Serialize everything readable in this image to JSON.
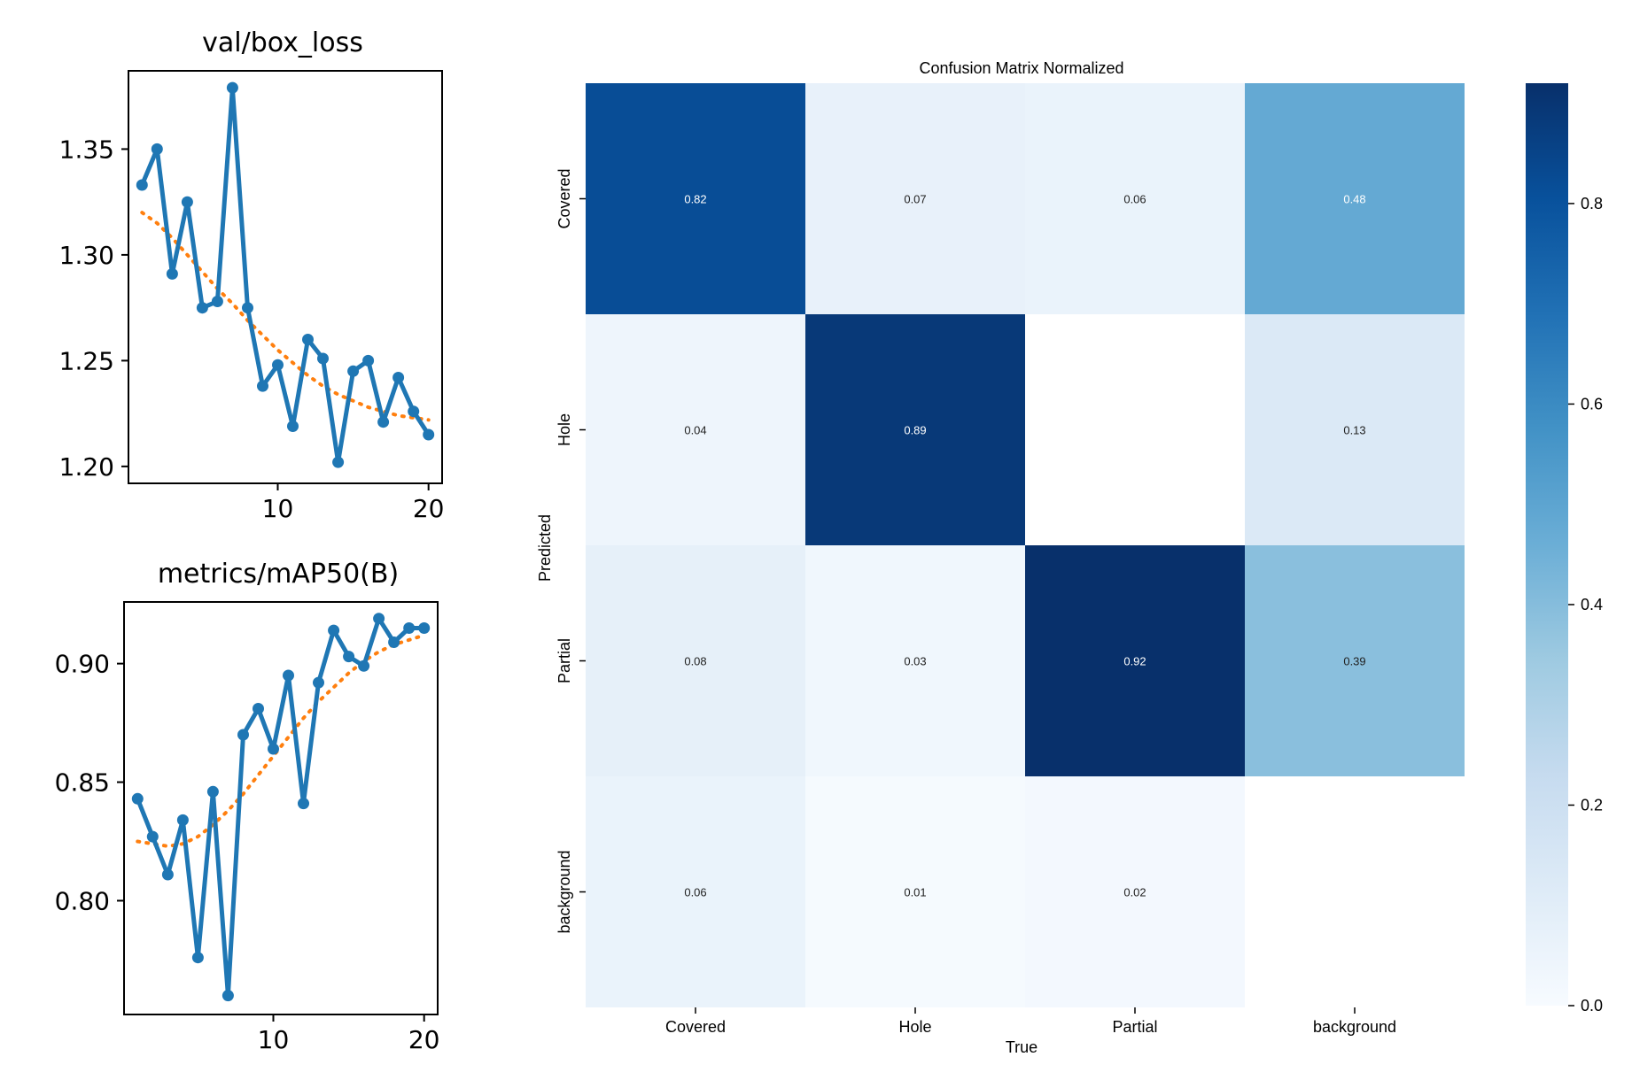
{
  "chart_data": [
    {
      "type": "line",
      "title": "val/box_loss",
      "x": [
        1,
        2,
        3,
        4,
        5,
        6,
        7,
        8,
        9,
        10,
        11,
        12,
        13,
        14,
        15,
        16,
        17,
        18,
        19,
        20
      ],
      "series": [
        {
          "values": [
            1.333,
            1.35,
            1.291,
            1.325,
            1.275,
            1.278,
            1.379,
            1.275,
            1.238,
            1.248,
            1.219,
            1.26,
            1.251,
            1.202,
            1.245,
            1.25,
            1.221,
            1.242,
            1.226,
            1.215
          ],
          "color": "#1f77b4",
          "style": "solid-markers"
        },
        {
          "values": [
            1.32,
            1.315,
            1.308,
            1.3,
            1.292,
            1.284,
            1.277,
            1.269,
            1.262,
            1.255,
            1.249,
            1.243,
            1.238,
            1.234,
            1.231,
            1.228,
            1.226,
            1.224,
            1.223,
            1.222
          ],
          "color": "#ff7f0e",
          "style": "dotted"
        }
      ],
      "xticks": [
        10,
        20
      ],
      "yticks": [
        "1.20",
        "1.25",
        "1.30",
        "1.35"
      ],
      "xlim": [
        0.1,
        20.9
      ],
      "ylim": [
        1.192,
        1.387
      ]
    },
    {
      "type": "line",
      "title": "metrics/mAP50(B)",
      "x": [
        1,
        2,
        3,
        4,
        5,
        6,
        7,
        8,
        9,
        10,
        11,
        12,
        13,
        14,
        15,
        16,
        17,
        18,
        19,
        20
      ],
      "series": [
        {
          "values": [
            0.843,
            0.827,
            0.811,
            0.834,
            0.776,
            0.846,
            0.76,
            0.87,
            0.881,
            0.864,
            0.895,
            0.841,
            0.892,
            0.914,
            0.903,
            0.899,
            0.919,
            0.909,
            0.915,
            0.915
          ],
          "color": "#1f77b4",
          "style": "solid-markers"
        },
        {
          "values": [
            0.825,
            0.824,
            0.823,
            0.824,
            0.827,
            0.832,
            0.838,
            0.845,
            0.853,
            0.861,
            0.869,
            0.877,
            0.884,
            0.89,
            0.896,
            0.901,
            0.905,
            0.908,
            0.91,
            0.912
          ],
          "color": "#ff7f0e",
          "style": "dotted"
        }
      ],
      "xticks": [
        10,
        20
      ],
      "yticks": [
        "0.80",
        "0.85",
        "0.90"
      ],
      "xlim": [
        0.1,
        20.9
      ],
      "ylim": [
        0.752,
        0.926
      ]
    },
    {
      "type": "heatmap",
      "title": "Confusion Matrix Normalized",
      "xlabel": "True",
      "ylabel": "Predicted",
      "x_categories": [
        "Covered",
        "Hole",
        "Partial",
        "background"
      ],
      "y_categories": [
        "Covered",
        "Hole",
        "Partial",
        "background"
      ],
      "values": [
        [
          0.82,
          0.07,
          0.06,
          0.48
        ],
        [
          0.04,
          0.89,
          null,
          0.13
        ],
        [
          0.08,
          0.03,
          0.92,
          0.39
        ],
        [
          0.06,
          0.01,
          0.02,
          null
        ]
      ],
      "labels": [
        [
          "0.82",
          "0.07",
          "0.06",
          "0.48"
        ],
        [
          "0.04",
          "0.89",
          "",
          "0.13"
        ],
        [
          "0.08",
          "0.03",
          "0.92",
          "0.39"
        ],
        [
          "0.06",
          "0.01",
          "0.02",
          ""
        ]
      ],
      "colormap": "Blues",
      "colorbar_range": [
        0,
        0.92
      ],
      "colorbar_ticks": [
        "0.0",
        "0.2",
        "0.4",
        "0.6",
        "0.8"
      ]
    }
  ]
}
